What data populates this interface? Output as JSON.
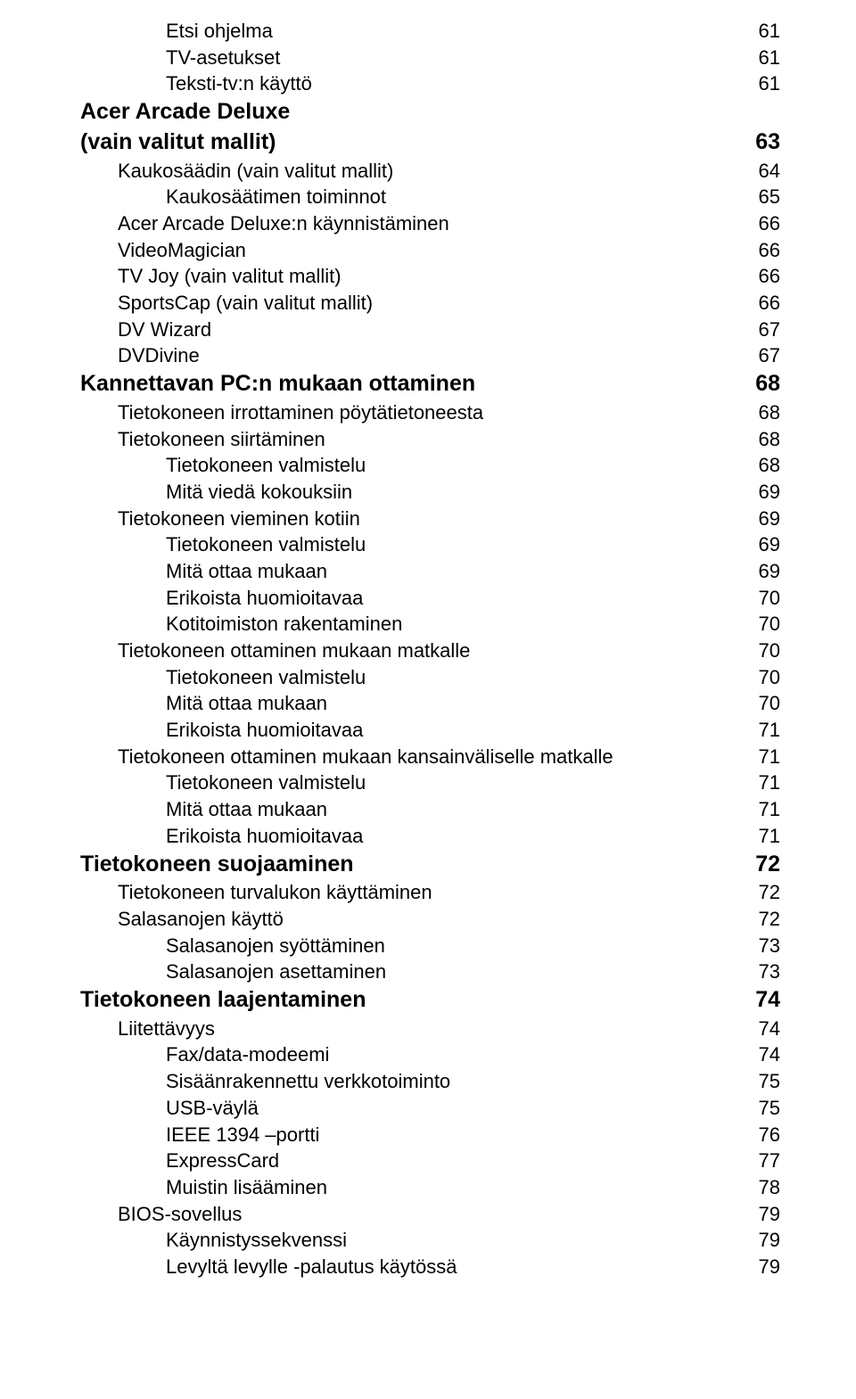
{
  "toc": [
    {
      "label": "Etsi ohjelma",
      "page": "61",
      "indent": 2,
      "bold": false,
      "size": "m"
    },
    {
      "label": "TV-asetukset",
      "page": "61",
      "indent": 2,
      "bold": false,
      "size": "m"
    },
    {
      "label": "Teksti-tv:n käyttö",
      "page": "61",
      "indent": 2,
      "bold": false,
      "size": "m"
    },
    {
      "label": "Acer Arcade Deluxe",
      "page": "",
      "indent": 0,
      "bold": true,
      "size": "xl"
    },
    {
      "label": "(vain valitut mallit)",
      "page": "63",
      "indent": 0,
      "bold": true,
      "size": "xl"
    },
    {
      "label": "Kaukosäädin (vain valitut mallit)",
      "page": "64",
      "indent": 1,
      "bold": false,
      "size": "l"
    },
    {
      "label": "Kaukosäätimen toiminnot",
      "page": "65",
      "indent": 2,
      "bold": false,
      "size": "m"
    },
    {
      "label": "Acer Arcade Deluxe:n käynnistäminen",
      "page": "66",
      "indent": 1,
      "bold": false,
      "size": "l"
    },
    {
      "label": "VideoMagician",
      "page": "66",
      "indent": 1,
      "bold": false,
      "size": "l"
    },
    {
      "label": "TV Joy (vain valitut mallit)",
      "page": "66",
      "indent": 1,
      "bold": false,
      "size": "l"
    },
    {
      "label": "SportsCap (vain valitut mallit)",
      "page": "66",
      "indent": 1,
      "bold": false,
      "size": "l"
    },
    {
      "label": "DV Wizard",
      "page": "67",
      "indent": 1,
      "bold": false,
      "size": "l"
    },
    {
      "label": "DVDivine",
      "page": "67",
      "indent": 1,
      "bold": false,
      "size": "l"
    },
    {
      "label": "Kannettavan PC:n mukaan ottaminen",
      "page": "68",
      "indent": 0,
      "bold": true,
      "size": "xl"
    },
    {
      "label": "Tietokoneen irrottaminen pöytätietoneesta",
      "page": "68",
      "indent": 1,
      "bold": false,
      "size": "l"
    },
    {
      "label": "Tietokoneen siirtäminen",
      "page": "68",
      "indent": 1,
      "bold": false,
      "size": "l"
    },
    {
      "label": "Tietokoneen valmistelu",
      "page": "68",
      "indent": 2,
      "bold": false,
      "size": "m"
    },
    {
      "label": "Mitä viedä kokouksiin",
      "page": "69",
      "indent": 2,
      "bold": false,
      "size": "m"
    },
    {
      "label": "Tietokoneen vieminen kotiin",
      "page": "69",
      "indent": 1,
      "bold": false,
      "size": "l"
    },
    {
      "label": "Tietokoneen valmistelu",
      "page": "69",
      "indent": 2,
      "bold": false,
      "size": "m"
    },
    {
      "label": "Mitä ottaa mukaan",
      "page": "69",
      "indent": 2,
      "bold": false,
      "size": "m"
    },
    {
      "label": "Erikoista huomioitavaa",
      "page": "70",
      "indent": 2,
      "bold": false,
      "size": "m"
    },
    {
      "label": "Kotitoimiston rakentaminen",
      "page": "70",
      "indent": 2,
      "bold": false,
      "size": "m"
    },
    {
      "label": "Tietokoneen ottaminen mukaan matkalle",
      "page": "70",
      "indent": 1,
      "bold": false,
      "size": "l"
    },
    {
      "label": "Tietokoneen valmistelu",
      "page": "70",
      "indent": 2,
      "bold": false,
      "size": "m"
    },
    {
      "label": "Mitä ottaa mukaan",
      "page": "70",
      "indent": 2,
      "bold": false,
      "size": "m"
    },
    {
      "label": "Erikoista huomioitavaa",
      "page": "71",
      "indent": 2,
      "bold": false,
      "size": "m"
    },
    {
      "label": "Tietokoneen ottaminen mukaan kansainväliselle matkalle",
      "page": "71",
      "indent": 1,
      "bold": false,
      "size": "l"
    },
    {
      "label": "Tietokoneen valmistelu",
      "page": "71",
      "indent": 2,
      "bold": false,
      "size": "m"
    },
    {
      "label": "Mitä ottaa mukaan",
      "page": "71",
      "indent": 2,
      "bold": false,
      "size": "m"
    },
    {
      "label": "Erikoista huomioitavaa",
      "page": "71",
      "indent": 2,
      "bold": false,
      "size": "m"
    },
    {
      "label": "Tietokoneen suojaaminen",
      "page": "72",
      "indent": 0,
      "bold": true,
      "size": "xl"
    },
    {
      "label": "Tietokoneen turvalukon käyttäminen",
      "page": "72",
      "indent": 1,
      "bold": false,
      "size": "l"
    },
    {
      "label": "Salasanojen käyttö",
      "page": "72",
      "indent": 1,
      "bold": false,
      "size": "l"
    },
    {
      "label": "Salasanojen syöttäminen",
      "page": "73",
      "indent": 2,
      "bold": false,
      "size": "m"
    },
    {
      "label": "Salasanojen asettaminen",
      "page": "73",
      "indent": 2,
      "bold": false,
      "size": "m"
    },
    {
      "label": "Tietokoneen laajentaminen",
      "page": "74",
      "indent": 0,
      "bold": true,
      "size": "xl"
    },
    {
      "label": "Liitettävyys",
      "page": "74",
      "indent": 1,
      "bold": false,
      "size": "l"
    },
    {
      "label": "Fax/data-modeemi",
      "page": "74",
      "indent": 2,
      "bold": false,
      "size": "m"
    },
    {
      "label": "Sisäänrakennettu verkkotoiminto",
      "page": "75",
      "indent": 2,
      "bold": false,
      "size": "m"
    },
    {
      "label": "USB-väylä",
      "page": "75",
      "indent": 2,
      "bold": false,
      "size": "m"
    },
    {
      "label": "IEEE 1394 –portti",
      "page": "76",
      "indent": 2,
      "bold": false,
      "size": "m"
    },
    {
      "label": "ExpressCard",
      "page": "77",
      "indent": 2,
      "bold": false,
      "size": "m"
    },
    {
      "label": "Muistin lisääminen",
      "page": "78",
      "indent": 2,
      "bold": false,
      "size": "m"
    },
    {
      "label": "BIOS-sovellus",
      "page": "79",
      "indent": 1,
      "bold": false,
      "size": "l"
    },
    {
      "label": "Käynnistyssekvenssi",
      "page": "79",
      "indent": 2,
      "bold": false,
      "size": "m"
    },
    {
      "label": "Levyltä levylle -palautus käytössä",
      "page": "79",
      "indent": 2,
      "bold": false,
      "size": "m"
    }
  ]
}
